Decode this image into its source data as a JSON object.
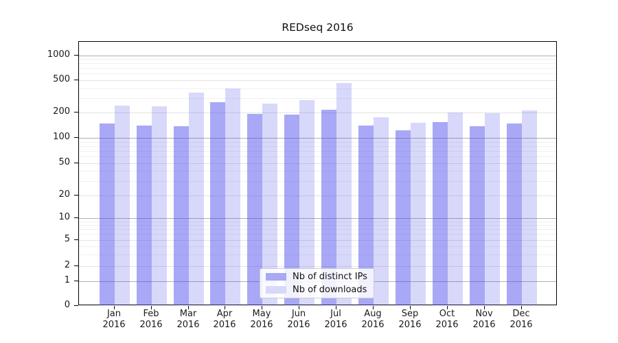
{
  "title": "REDseq 2016",
  "chart_data": {
    "type": "bar",
    "title": "REDseq 2016",
    "yscale": "symlog",
    "grid": true,
    "legend_position": "lower center",
    "categories": [
      "Jan",
      "Feb",
      "Mar",
      "Apr",
      "May",
      "Jun",
      "Jul",
      "Aug",
      "Sep",
      "Oct",
      "Nov",
      "Dec"
    ],
    "category_year": "2016",
    "yticks": [
      0,
      1,
      2,
      5,
      10,
      20,
      50,
      100,
      200,
      500,
      1000
    ],
    "ylim": [
      0,
      1400
    ],
    "series": [
      {
        "name": "Nb of distinct IPs",
        "color": "#a8a8f5",
        "values": [
          150,
          140,
          138,
          270,
          195,
          190,
          218,
          141,
          124,
          154,
          138,
          148
        ]
      },
      {
        "name": "Nb of downloads",
        "color": "#d8d8fa",
        "values": [
          245,
          238,
          352,
          400,
          261,
          285,
          462,
          175,
          151,
          200,
          199,
          215
        ]
      }
    ]
  },
  "colors": {
    "bar_fill_dark": "rgba(70,70,235,0.47)",
    "bar_fill_light": "rgba(70,70,235,0.21)",
    "grid_decade": "#b0b0b0",
    "grid_major": "#e3e3e3",
    "grid_minor": "#f0f0f0",
    "axis": "#000000",
    "text": "#1a1a1a",
    "legend_border": "#cccccc",
    "legend_bg": "rgba(255,255,255,0.85)"
  }
}
